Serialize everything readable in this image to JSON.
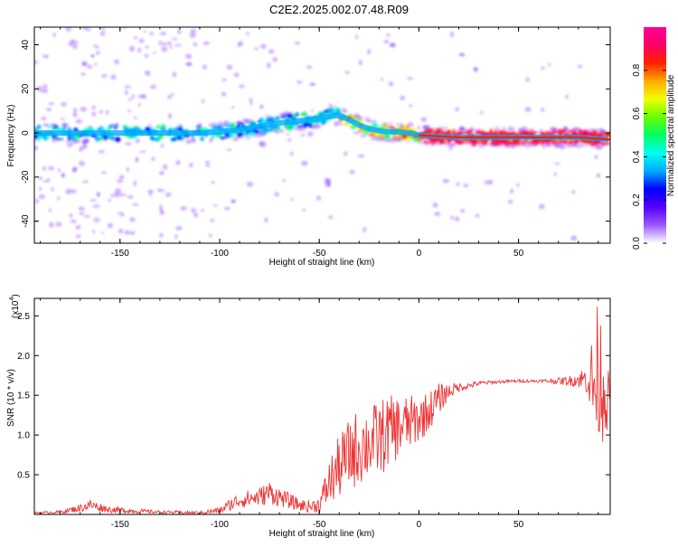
{
  "title": "C2E2.2025.002.07.48.R09",
  "chart_data": [
    {
      "type": "heatmap",
      "title": "C2E2.2025.002.07.48.R09",
      "xlabel": "Height of straight line (km)",
      "ylabel": "Frequency (Hz)",
      "xlim": [
        -193,
        96
      ],
      "ylim": [
        -50,
        48
      ],
      "xticks": [
        -150,
        -100,
        -50,
        0,
        50
      ],
      "yticks": [
        -40,
        -20,
        0,
        20,
        40
      ],
      "ridge": {
        "x": [
          -190,
          -170,
          -150,
          -130,
          -110,
          -100,
          -90,
          -80,
          -70,
          -60,
          -50,
          -45,
          -40,
          -35,
          -30,
          -25,
          -20,
          -15,
          -10,
          -5,
          0,
          10,
          20,
          40,
          60,
          80,
          96
        ],
        "y": [
          0,
          0,
          0,
          0,
          0,
          0.5,
          1.5,
          3,
          4.5,
          5.5,
          6.5,
          7.5,
          8,
          6,
          3.5,
          2,
          1,
          0.5,
          0.5,
          0,
          -1,
          -1.5,
          -2,
          -2,
          -2,
          -2,
          -3
        ]
      },
      "colorbar": {
        "label": "Normalized spectral amplitude",
        "range": [
          0,
          1
        ],
        "ticks": [
          0.0,
          0.2,
          0.4,
          0.6,
          0.8
        ],
        "colors": [
          "#ffffff",
          "#9b59ff",
          "#5500ff",
          "#0000ff",
          "#00aaff",
          "#00ffee",
          "#00ff66",
          "#66ff00",
          "#eeff00",
          "#ffaa00",
          "#ff2200",
          "#ff0066",
          "#ff0099"
        ]
      },
      "grid": false
    },
    {
      "type": "line",
      "xlabel": "Height of straight line (km)",
      "ylabel": "SNR (10 * v/v)",
      "scale_label": "(x10",
      "scale_exp": "4",
      "scale_close": ")",
      "xlim": [
        -193,
        96
      ],
      "ylim": [
        0,
        2.72
      ],
      "xticks": [
        -150,
        -100,
        -50,
        0,
        50
      ],
      "yticks": [
        0.5,
        1.0,
        1.5,
        2.0,
        2.5
      ],
      "ytick_labels": [
        "0.5",
        "1.0",
        "1.5",
        "2.0",
        "2.5"
      ],
      "series": [
        {
          "color": "#ee3333",
          "envelope": {
            "x": [
              -193,
              -180,
              -170,
              -165,
              -155,
              -140,
              -130,
              -110,
              -100,
              -95,
              -90,
              -80,
              -75,
              -70,
              -60,
              -55,
              -50,
              -45,
              -40,
              -35,
              -30,
              -25,
              -20,
              -15,
              -10,
              -5,
              0,
              5,
              10,
              15,
              20,
              25,
              30,
              40,
              50,
              60,
              70,
              75,
              80,
              85,
              88,
              90,
              92,
              94,
              96
            ],
            "y": [
              0.02,
              0.03,
              0.08,
              0.12,
              0.06,
              0.04,
              0.03,
              0.02,
              0.05,
              0.12,
              0.18,
              0.22,
              0.28,
              0.22,
              0.12,
              0.1,
              0.12,
              0.4,
              0.6,
              0.75,
              0.85,
              0.9,
              0.95,
              1.05,
              1.1,
              1.15,
              1.2,
              1.3,
              1.45,
              1.55,
              1.6,
              1.62,
              1.65,
              1.67,
              1.68,
              1.68,
              1.68,
              1.68,
              1.7,
              1.7,
              1.6,
              1.8,
              1.7,
              1.5,
              1.45
            ],
            "spread": [
              0.01,
              0.02,
              0.05,
              0.07,
              0.04,
              0.03,
              0.02,
              0.02,
              0.04,
              0.08,
              0.1,
              0.12,
              0.15,
              0.12,
              0.08,
              0.08,
              0.1,
              0.3,
              0.4,
              0.45,
              0.5,
              0.45,
              0.5,
              0.45,
              0.4,
              0.35,
              0.3,
              0.25,
              0.2,
              0.1,
              0.06,
              0.04,
              0.03,
              0.02,
              0.02,
              0.02,
              0.04,
              0.06,
              0.1,
              0.2,
              0.9,
              0.9,
              0.8,
              0.5,
              0.2
            ]
          }
        }
      ],
      "grid": false
    }
  ]
}
